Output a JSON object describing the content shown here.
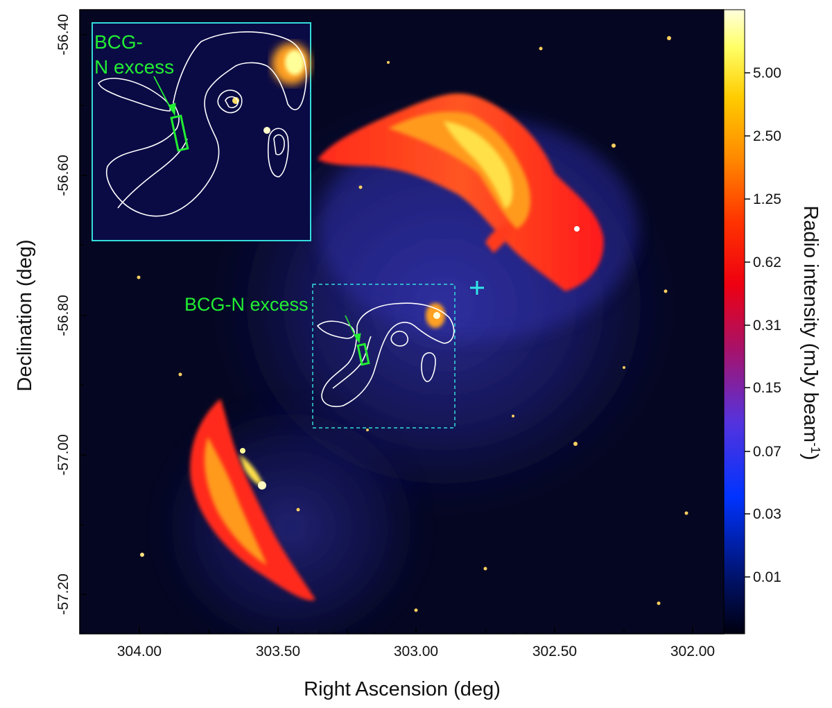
{
  "figure": {
    "x_axis_title": "Right Ascension (deg)",
    "y_axis_title": "Declination (deg)",
    "colorbar_title": "Radio intensity (mJy beam",
    "colorbar_title_sup": "-1",
    "colorbar_title_close": ")",
    "x_ticks": [
      "304.00",
      "303.50",
      "303.00",
      "302.50",
      "302.00"
    ],
    "y_ticks": [
      "-56.40",
      "-56.60",
      "-56.80",
      "-57.00",
      "-57.20"
    ],
    "colorbar_ticks": [
      "5.00",
      "2.50",
      "1.25",
      "0.62",
      "0.31",
      "0.15",
      "0.07",
      "0.03",
      "0.01"
    ],
    "annotation_main": "BCG-N excess",
    "annotation_inset_line1": "BCG-",
    "annotation_inset_line2": "N excess",
    "colors": {
      "background": "#050722",
      "inset_frame": "#33dddd",
      "annotation": "#22ee33",
      "contours": "#ffffff",
      "marker": "#33e6e6"
    }
  }
}
